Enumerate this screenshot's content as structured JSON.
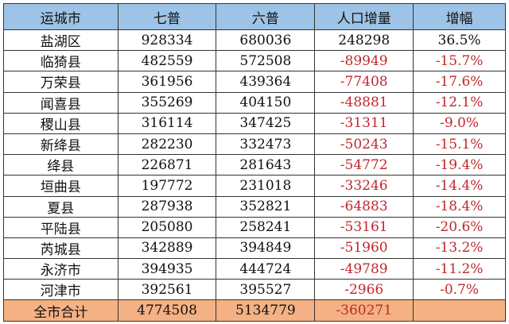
{
  "colors": {
    "header_bg": "#9dc3e6",
    "total_bg": "#f4b183",
    "negative": "#c0282d"
  },
  "headers": [
    "运城市",
    "七普",
    "六普",
    "人口增量",
    "增幅"
  ],
  "rows": [
    [
      "盐湖区",
      "928334",
      "680036",
      "248298",
      "36.5%"
    ],
    [
      "临猗县",
      "482559",
      "572508",
      "-89949",
      "-15.7%"
    ],
    [
      "万荣县",
      "361956",
      "439364",
      "-77408",
      "-17.6%"
    ],
    [
      "闻喜县",
      "355269",
      "404150",
      "-48881",
      "-12.1%"
    ],
    [
      "稷山县",
      "316114",
      "347425",
      "-31311",
      "-9.0%"
    ],
    [
      "新绛县",
      "282230",
      "332473",
      "-50243",
      "-15.1%"
    ],
    [
      "绛县",
      "226871",
      "281643",
      "-54772",
      "-19.4%"
    ],
    [
      "垣曲县",
      "197772",
      "231018",
      "-33246",
      "-14.4%"
    ],
    [
      "夏县",
      "287938",
      "352821",
      "-64883",
      "-18.4%"
    ],
    [
      "平陆县",
      "205080",
      "258241",
      "-53161",
      "-20.6%"
    ],
    [
      "芮城县",
      "342889",
      "394849",
      "-51960",
      "-13.2%"
    ],
    [
      "永济市",
      "394935",
      "444724",
      "-49789",
      "-11.2%"
    ],
    [
      "河津市",
      "392561",
      "395527",
      "-2966",
      "-0.7%"
    ]
  ],
  "total": [
    "全市合计",
    "4774508",
    "5134779",
    "-360271",
    ""
  ]
}
